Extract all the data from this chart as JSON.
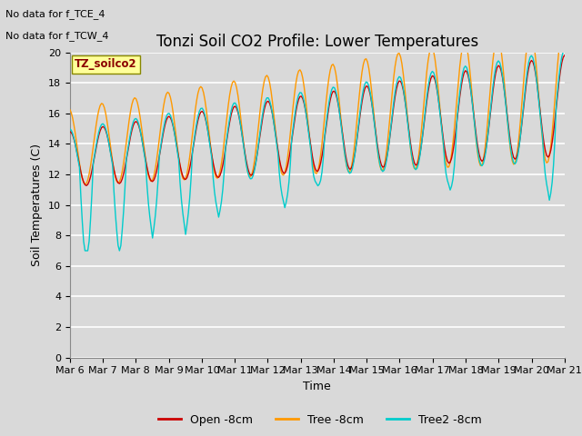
{
  "title": "Tonzi Soil CO2 Profile: Lower Temperatures",
  "ylabel": "Soil Temperatures (C)",
  "xlabel": "Time",
  "note_line1": "No data for f_TCE_4",
  "note_line2": "No data for f_TCW_4",
  "legend_box_label": "TZ_soilco2",
  "ylim": [
    0,
    20
  ],
  "yticks": [
    0,
    2,
    4,
    6,
    8,
    10,
    12,
    14,
    16,
    18,
    20
  ],
  "xtick_labels": [
    "Mar 6",
    "Mar 7",
    "Mar 8",
    "Mar 9",
    "Mar 10",
    "Mar 11",
    "Mar 12",
    "Mar 13",
    "Mar 14",
    "Mar 15",
    "Mar 16",
    "Mar 17",
    "Mar 18",
    "Mar 19",
    "Mar 20",
    "Mar 21"
  ],
  "open_color": "#cc0000",
  "tree_color": "#ff9900",
  "tree2_color": "#00cccc",
  "legend_labels": [
    "Open -8cm",
    "Tree -8cm",
    "Tree2 -8cm"
  ],
  "title_fontsize": 12,
  "axis_fontsize": 9,
  "tick_fontsize": 8,
  "fig_width": 6.4,
  "fig_height": 4.8,
  "dpi": 100
}
